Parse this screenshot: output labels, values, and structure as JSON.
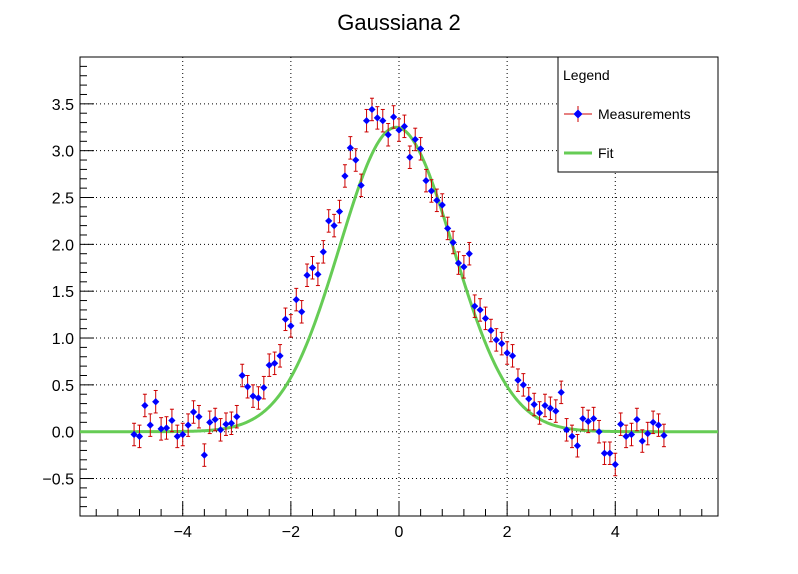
{
  "chart_data": {
    "type": "scatter",
    "title": "Gaussiana 2",
    "xlabel": "",
    "ylabel": "",
    "xlim": [
      -5.9,
      5.9
    ],
    "ylim": [
      -0.9,
      4.0
    ],
    "x_ticks": [
      -4,
      -2,
      0,
      2,
      4
    ],
    "x_tick_labels": [
      "−4",
      "−2",
      "0",
      "2",
      "4"
    ],
    "y_ticks": [
      -0.5,
      0.0,
      0.5,
      1.0,
      1.5,
      2.0,
      2.5,
      3.0,
      3.5
    ],
    "y_tick_labels": [
      "−0.5",
      "0.0",
      "0.5",
      "1.0",
      "1.5",
      "2.0",
      "2.5",
      "3.0",
      "3.5"
    ],
    "grid": true,
    "legend": {
      "title": "Legend",
      "placement": "top-right",
      "entries": [
        "Measurements",
        "Fit"
      ]
    },
    "series": [
      {
        "name": "Measurements",
        "kind": "scatter-errorbars",
        "color": "#0000ff",
        "error_color": "#cc0000",
        "x": [
          -4.9,
          -4.8,
          -4.7,
          -4.6,
          -4.5,
          -4.4,
          -4.3,
          -4.2,
          -4.1,
          -4.0,
          -3.9,
          -3.8,
          -3.7,
          -3.6,
          -3.5,
          -3.4,
          -3.3,
          -3.2,
          -3.1,
          -3.0,
          -2.9,
          -2.8,
          -2.7,
          -2.6,
          -2.5,
          -2.4,
          -2.3,
          -2.2,
          -2.1,
          -2.0,
          -1.9,
          -1.8,
          -1.7,
          -1.6,
          -1.5,
          -1.4,
          -1.3,
          -1.2,
          -1.1,
          -1.0,
          -0.9,
          -0.8,
          -0.7,
          -0.6,
          -0.5,
          -0.4,
          -0.3,
          -0.2,
          -0.1,
          0.0,
          0.1,
          0.2,
          0.3,
          0.4,
          0.5,
          0.6,
          0.7,
          0.8,
          0.9,
          1.0,
          1.1,
          1.2,
          1.3,
          1.4,
          1.5,
          1.6,
          1.7,
          1.8,
          1.9,
          2.0,
          2.1,
          2.2,
          2.3,
          2.4,
          2.5,
          2.6,
          2.7,
          2.8,
          2.9,
          3.0,
          3.1,
          3.2,
          3.3,
          3.4,
          3.5,
          3.6,
          3.7,
          3.8,
          3.9,
          4.0,
          4.1,
          4.2,
          4.3,
          4.4,
          4.5,
          4.6,
          4.7,
          4.8,
          4.9
        ],
        "y": [
          -0.03,
          -0.05,
          0.28,
          0.07,
          0.32,
          0.03,
          0.04,
          0.12,
          -0.05,
          -0.03,
          0.07,
          0.21,
          0.16,
          -0.25,
          0.1,
          0.13,
          0.02,
          0.08,
          0.09,
          0.16,
          0.6,
          0.48,
          0.38,
          0.36,
          0.47,
          0.71,
          0.73,
          0.81,
          1.2,
          1.13,
          1.41,
          1.28,
          1.67,
          1.75,
          1.68,
          1.92,
          2.25,
          2.2,
          2.35,
          2.73,
          3.03,
          2.9,
          2.63,
          3.32,
          3.44,
          3.35,
          3.32,
          3.17,
          3.36,
          3.22,
          3.26,
          2.93,
          3.12,
          3.02,
          2.68,
          2.57,
          2.47,
          2.42,
          2.17,
          2.02,
          1.8,
          1.76,
          1.9,
          1.34,
          1.3,
          1.21,
          1.08,
          0.98,
          0.94,
          0.84,
          0.81,
          0.55,
          0.5,
          0.35,
          0.29,
          0.2,
          0.28,
          0.25,
          0.22,
          0.42,
          0.02,
          -0.05,
          -0.15,
          0.14,
          0.11,
          0.14,
          0.0,
          -0.23,
          -0.23,
          -0.35,
          0.08,
          -0.05,
          -0.03,
          0.13,
          -0.1,
          -0.02,
          0.1,
          0.07,
          -0.04
        ],
        "yerr": 0.12
      },
      {
        "name": "Fit",
        "kind": "line",
        "color": "#66cc55",
        "model": "gaussian",
        "amplitude": 3.25,
        "mean": -0.05,
        "sigma": 1.05
      }
    ]
  }
}
